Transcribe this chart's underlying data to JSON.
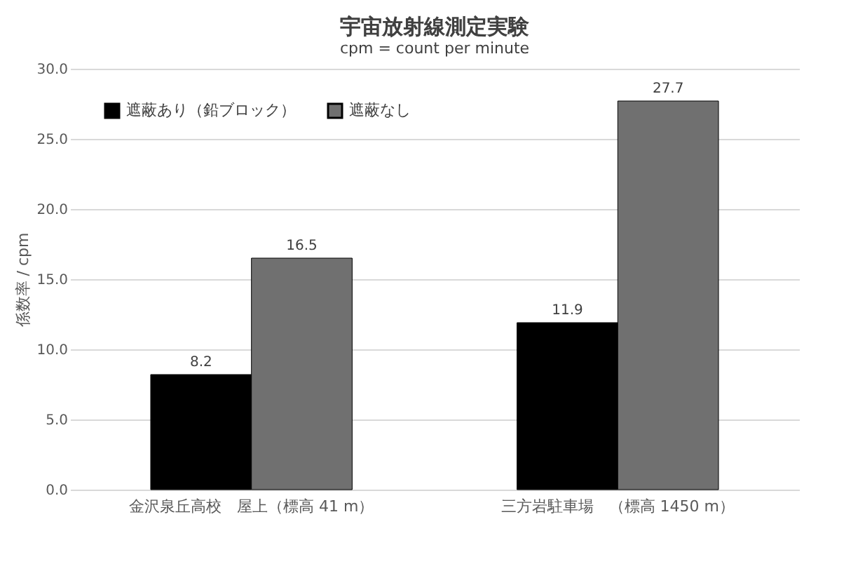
{
  "chart_data": {
    "type": "bar",
    "title": "宇宙放射線測定実験",
    "subtitle": "cpm = count per minute",
    "ylabel": "係数率 / cpm",
    "categories": [
      "金沢泉丘高校　屋上（標高 41 m）",
      "三方岩駐車場　（標高 1450 m）"
    ],
    "series": [
      {
        "name": "遮蔽あり（鉛ブロック）",
        "color": "#000000",
        "values": [
          8.2,
          11.9
        ]
      },
      {
        "name": "遮蔽なし",
        "color": "#707070",
        "values": [
          16.5,
          27.7
        ]
      }
    ],
    "ylim": [
      0,
      30
    ],
    "yticks": [
      {
        "value": 0,
        "label": "0.0"
      },
      {
        "value": 5,
        "label": "5.0"
      },
      {
        "value": 10,
        "label": "10.0"
      },
      {
        "value": 15,
        "label": "15.0"
      },
      {
        "value": 20,
        "label": "20.0"
      },
      {
        "value": 25,
        "label": "25.0"
      },
      {
        "value": 30,
        "label": "30.0"
      }
    ],
    "grid": "y",
    "legend": "top left",
    "data_labels": true
  }
}
